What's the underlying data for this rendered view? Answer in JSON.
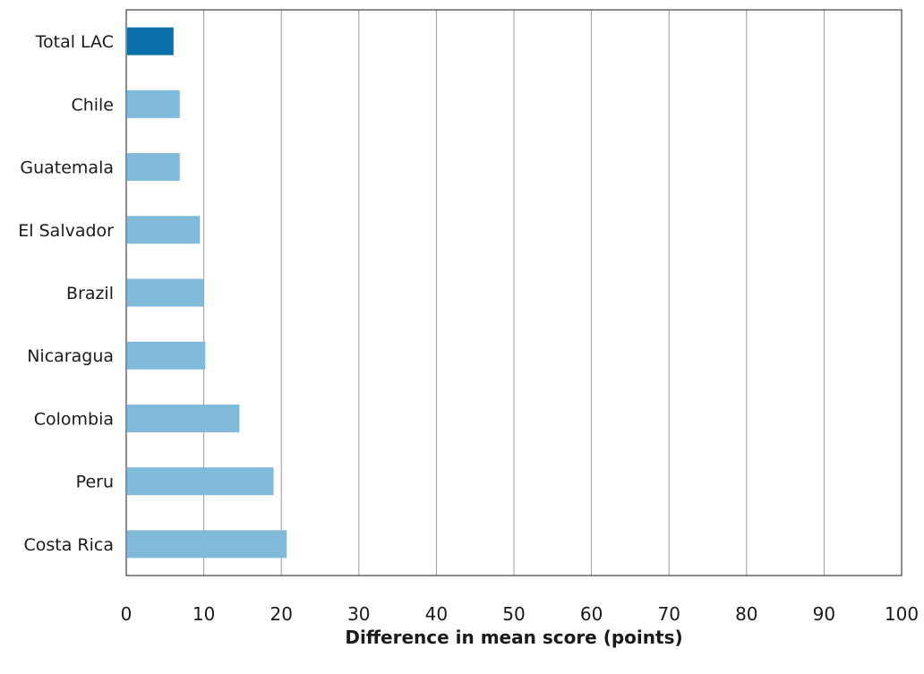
{
  "chart_data": {
    "type": "bar",
    "orientation": "horizontal",
    "title": "",
    "xlabel": "Difference in mean score (points)",
    "ylabel": "",
    "xlim": [
      0,
      100
    ],
    "x_ticks": [
      0,
      10,
      20,
      30,
      40,
      50,
      60,
      70,
      80,
      90,
      100
    ],
    "grid": "vertical",
    "categories": [
      "Total LAC",
      "Chile",
      "Guatemala",
      "El Salvador",
      "Brazil",
      "Nicaragua",
      "Colombia",
      "Peru",
      "Costa Rica"
    ],
    "values": [
      6.1,
      6.9,
      6.9,
      9.5,
      10.0,
      10.2,
      14.6,
      19.0,
      20.7
    ],
    "colors": {
      "highlight": "#0b6fa9",
      "bar": "#80b9d9",
      "grid": "#9a9a9a",
      "axis": "#1a1a1a"
    },
    "highlight_categories": [
      "Total LAC"
    ]
  }
}
